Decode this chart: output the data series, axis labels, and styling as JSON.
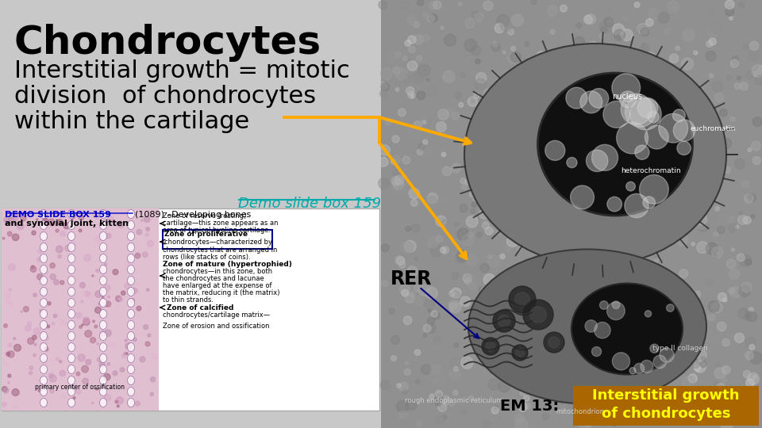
{
  "bg_color": "#c8c8c8",
  "title": "Chondrocytes",
  "title_fontsize": 36,
  "title_bold": true,
  "subtitle_lines": [
    "Interstitial growth = mitotic",
    "division  of chondrocytes",
    "within the cartilage"
  ],
  "subtitle_fontsize": 22,
  "demo_slide_label": "Demo slide box 159",
  "demo_slide_color": "#00aaaa",
  "rer_label": "RER",
  "em_label": "EM 13:",
  "interstitial_label": "Interstitial growth\nof chondrocytes",
  "interstitial_bg": "#aa6600",
  "interstitial_fg": "#ffff00",
  "arrow_color": "#ffaa00",
  "rer_arrow_color": "#000080"
}
